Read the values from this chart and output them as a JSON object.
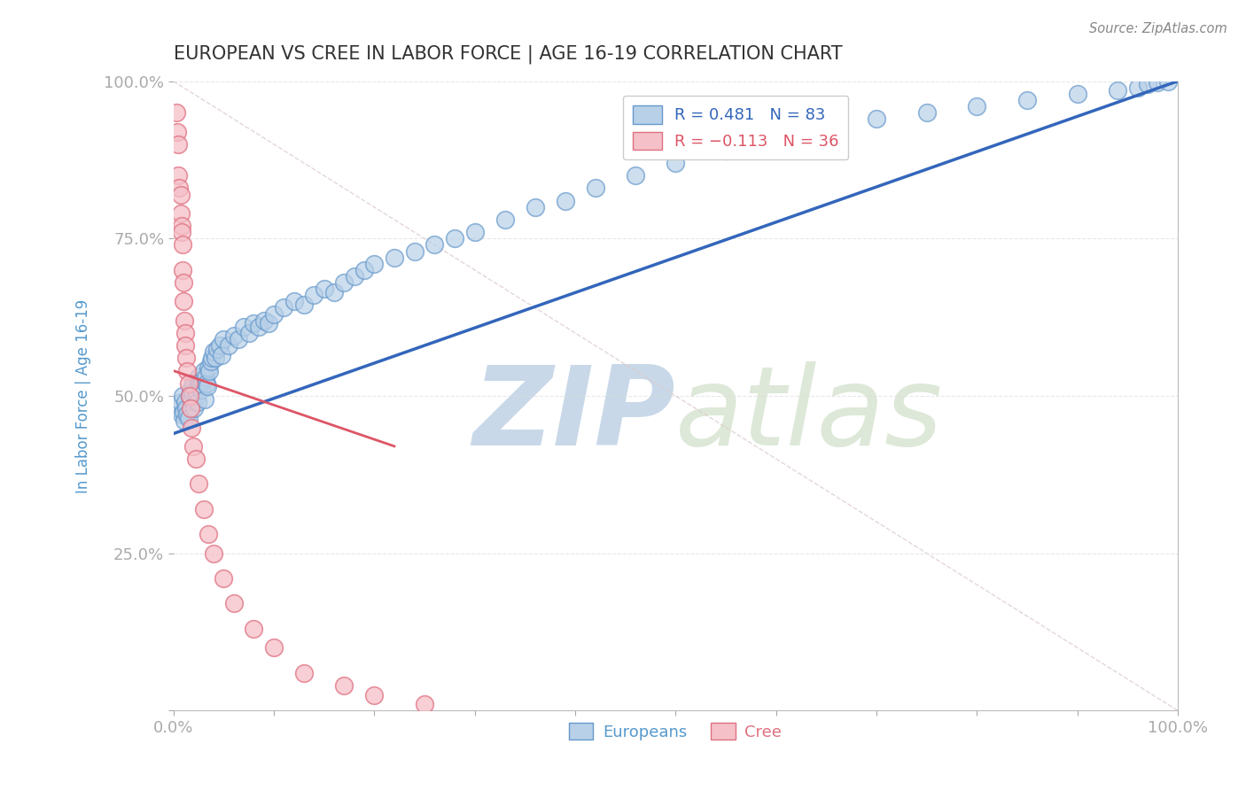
{
  "title": "EUROPEAN VS CREE IN LABOR FORCE | AGE 16-19 CORRELATION CHART",
  "source_text": "Source: ZipAtlas.com",
  "ylabel": "In Labor Force | Age 16-19",
  "xlim": [
    0.0,
    1.0
  ],
  "ylim": [
    0.0,
    1.0
  ],
  "legend_blue_label": "R = 0.481   N = 83",
  "legend_pink_label": "R = −0.113   N = 36",
  "legend_Europeans": "Europeans",
  "legend_Cree": "Cree",
  "blue_R": 0.481,
  "pink_R": -0.113,
  "blue_color": "#b8d0e8",
  "blue_edge_color": "#6699cc",
  "pink_color": "#f5c0c8",
  "pink_edge_color": "#e07080",
  "blue_line_color": "#3366bb",
  "pink_line_color": "#dd5566",
  "ref_line_color": "#ddcccc",
  "title_color": "#333333",
  "axis_color": "#5599cc",
  "watermark_color": "#c8d8e8",
  "background_color": "#ffffff",
  "blue_x": [
    0.005,
    0.007,
    0.008,
    0.009,
    0.01,
    0.011,
    0.012,
    0.013,
    0.014,
    0.015,
    0.016,
    0.017,
    0.018,
    0.019,
    0.02,
    0.021,
    0.022,
    0.023,
    0.024,
    0.025,
    0.026,
    0.027,
    0.028,
    0.029,
    0.03,
    0.031,
    0.032,
    0.033,
    0.034,
    0.035,
    0.036,
    0.037,
    0.038,
    0.04,
    0.042,
    0.044,
    0.046,
    0.048,
    0.05,
    0.055,
    0.06,
    0.065,
    0.07,
    0.075,
    0.08,
    0.085,
    0.09,
    0.095,
    0.1,
    0.11,
    0.12,
    0.13,
    0.14,
    0.15,
    0.16,
    0.17,
    0.18,
    0.19,
    0.2,
    0.22,
    0.24,
    0.26,
    0.28,
    0.3,
    0.33,
    0.36,
    0.39,
    0.42,
    0.46,
    0.5,
    0.55,
    0.6,
    0.65,
    0.7,
    0.75,
    0.8,
    0.85,
    0.9,
    0.94,
    0.96,
    0.97,
    0.98,
    0.99
  ],
  "blue_y": [
    0.48,
    0.49,
    0.47,
    0.5,
    0.475,
    0.46,
    0.49,
    0.48,
    0.47,
    0.465,
    0.5,
    0.51,
    0.495,
    0.505,
    0.52,
    0.48,
    0.51,
    0.5,
    0.49,
    0.53,
    0.515,
    0.52,
    0.51,
    0.525,
    0.54,
    0.495,
    0.53,
    0.52,
    0.515,
    0.545,
    0.54,
    0.555,
    0.56,
    0.57,
    0.56,
    0.575,
    0.58,
    0.565,
    0.59,
    0.58,
    0.595,
    0.59,
    0.61,
    0.6,
    0.615,
    0.61,
    0.62,
    0.615,
    0.63,
    0.64,
    0.65,
    0.645,
    0.66,
    0.67,
    0.665,
    0.68,
    0.69,
    0.7,
    0.71,
    0.72,
    0.73,
    0.74,
    0.75,
    0.76,
    0.78,
    0.8,
    0.81,
    0.83,
    0.85,
    0.87,
    0.89,
    0.9,
    0.92,
    0.94,
    0.95,
    0.96,
    0.97,
    0.98,
    0.985,
    0.99,
    0.995,
    0.998,
    1.0
  ],
  "pink_x": [
    0.003,
    0.004,
    0.005,
    0.005,
    0.006,
    0.007,
    0.007,
    0.008,
    0.008,
    0.009,
    0.009,
    0.01,
    0.01,
    0.011,
    0.012,
    0.012,
    0.013,
    0.014,
    0.015,
    0.016,
    0.017,
    0.018,
    0.02,
    0.022,
    0.025,
    0.03,
    0.035,
    0.04,
    0.05,
    0.06,
    0.08,
    0.1,
    0.13,
    0.17,
    0.2,
    0.25
  ],
  "pink_y": [
    0.95,
    0.92,
    0.9,
    0.85,
    0.83,
    0.82,
    0.79,
    0.77,
    0.76,
    0.74,
    0.7,
    0.68,
    0.65,
    0.62,
    0.6,
    0.58,
    0.56,
    0.54,
    0.52,
    0.5,
    0.48,
    0.45,
    0.42,
    0.4,
    0.36,
    0.32,
    0.28,
    0.25,
    0.21,
    0.17,
    0.13,
    0.1,
    0.06,
    0.04,
    0.025,
    0.01
  ],
  "blue_line_x": [
    0.0,
    1.0
  ],
  "blue_line_y": [
    0.44,
    1.0
  ],
  "pink_line_x": [
    0.0,
    0.22
  ],
  "pink_line_y": [
    0.54,
    0.42
  ],
  "ref_line_x": [
    0.0,
    1.0
  ],
  "ref_line_y": [
    1.0,
    0.0
  ]
}
